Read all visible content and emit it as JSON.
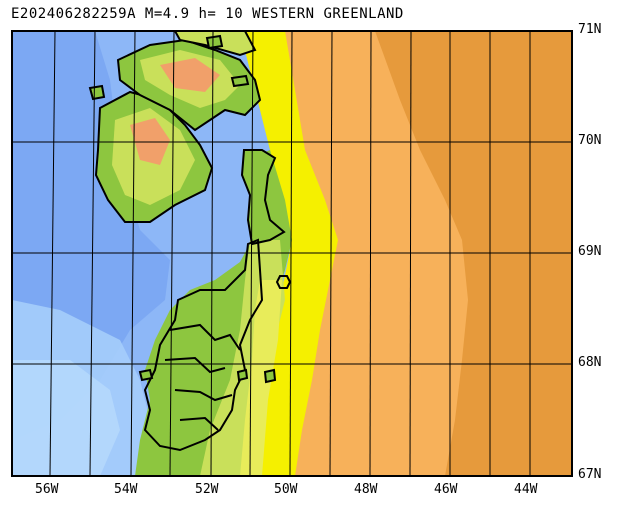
{
  "title": "E202406282259A M=4.9 h= 10 WESTERN GREENLAND",
  "lat_labels": [
    "71N",
    "70N",
    "69N",
    "68N",
    "67N"
  ],
  "lon_labels": [
    "56W",
    "54W",
    "52W",
    "50W",
    "48W",
    "46W",
    "44W"
  ],
  "colors": {
    "deep_ocean": "#6f9df0",
    "ocean": "#8db7f7",
    "shallow_ocean": "#a5cdfb",
    "ice_edge": "#f5e64a",
    "ice_cap": "#f7b15a",
    "ice_cap_high": "#e69a3c",
    "lowland": "#8dc63f",
    "upland": "#c9e05a",
    "highland": "#f0e85a",
    "peak": "#f1a06a",
    "epicenter": "#000000"
  },
  "epicenter_icon": "hexagon-epicenter-icon"
}
